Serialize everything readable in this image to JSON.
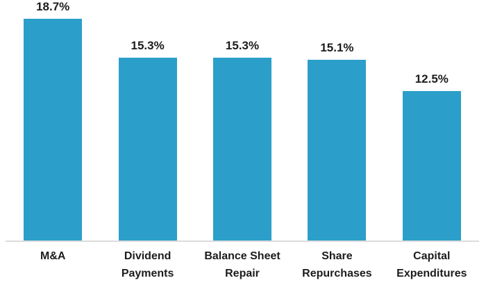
{
  "chart_data": {
    "type": "bar",
    "categories": [
      "M&A",
      "Dividend\nPayments",
      "Balance Sheet\nRepair",
      "Share\nRepurchases",
      "Capital\nExpenditures"
    ],
    "values": [
      18.7,
      15.3,
      15.3,
      15.1,
      12.5
    ],
    "data_labels": [
      "18.7%",
      "15.3%",
      "15.3%",
      "15.1%",
      "12.5%"
    ],
    "title": "",
    "xlabel": "",
    "ylabel": "",
    "ylim": [
      0,
      20
    ],
    "gridlines": false,
    "y_axis_visible": false,
    "x_axis_line_visible": true,
    "legend_position": "none",
    "data_label_position": "above-bar",
    "colors": {
      "bar": "#2B9FC9",
      "axis_line": "#DCDCDC",
      "label_text": "#1C1C1C",
      "background": "#FFFFFF"
    }
  }
}
